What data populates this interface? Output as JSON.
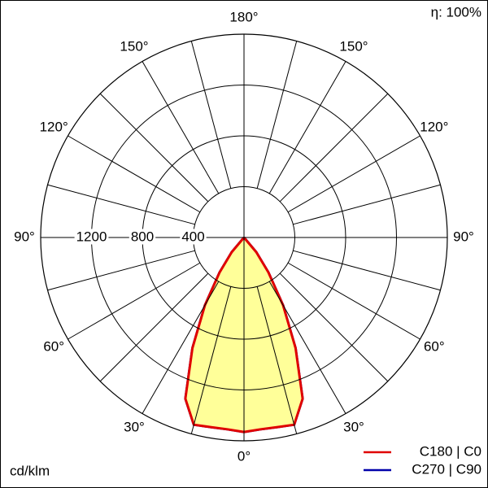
{
  "chart_data": {
    "type": "polar",
    "annotations": {
      "efficiency": "η: 100%",
      "unit": "cd/klm"
    },
    "rlim": [
      0,
      1600
    ],
    "rticks": [
      400,
      800,
      1200
    ],
    "angle_ticks": [
      {
        "value": 0,
        "label": "0°"
      },
      {
        "value": 30,
        "label": "30°"
      },
      {
        "value": 60,
        "label": "60°"
      },
      {
        "value": 90,
        "label": "90°"
      },
      {
        "value": 120,
        "label": "120°"
      },
      {
        "value": 150,
        "label": "150°"
      },
      {
        "value": 180,
        "label": "180°"
      }
    ],
    "angle_grid": [
      15,
      45,
      75,
      105,
      135,
      165
    ],
    "fill_color": "#ffff99",
    "angles": [
      0,
      5,
      10,
      15,
      20,
      25,
      30,
      35,
      40,
      45
    ],
    "series": [
      {
        "name": "C270 | C90",
        "color": "#0000aa",
        "values": [
          1530,
          1515,
          1515,
          1525,
          1350,
          960,
          615,
          335,
          150,
          0
        ]
      },
      {
        "name": "C180 | C0",
        "color": "#e00000",
        "values": [
          1530,
          1515,
          1515,
          1525,
          1350,
          960,
          615,
          335,
          150,
          0
        ]
      }
    ]
  }
}
